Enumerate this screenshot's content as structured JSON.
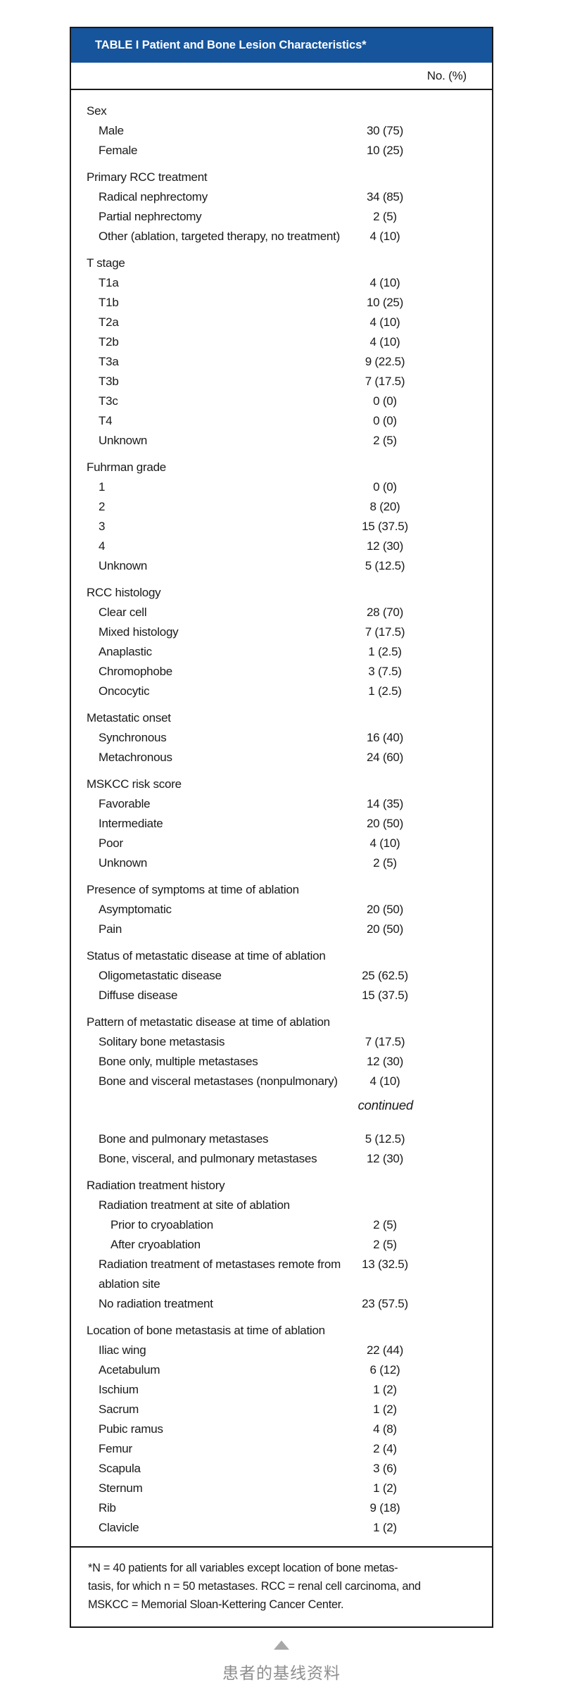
{
  "colors": {
    "header_blue": "#16549c",
    "border_black": "#1a1a1a",
    "caption_gray": "#8e8e8e",
    "triangle_gray": "#a8a8a8"
  },
  "table": {
    "title": "TABLE I Patient and Bone Lesion Characteristics*",
    "column_header": "No. (%)",
    "rows": [
      {
        "label": "Sex",
        "value": "",
        "indent": 0
      },
      {
        "label": "Male",
        "value": "30 (75)",
        "indent": 1
      },
      {
        "label": "Female",
        "value": "10 (25)",
        "indent": 1
      },
      {
        "label": "Primary RCC treatment",
        "value": "",
        "indent": 0
      },
      {
        "label": "Radical nephrectomy",
        "value": "34 (85)",
        "indent": 1
      },
      {
        "label": "Partial nephrectomy",
        "value": "2 (5)",
        "indent": 1
      },
      {
        "label": "Other (ablation, targeted therapy, no treatment)",
        "value": "4 (10)",
        "indent": 1
      },
      {
        "label": "T stage",
        "value": "",
        "indent": 0
      },
      {
        "label": "T1a",
        "value": "4 (10)",
        "indent": 1
      },
      {
        "label": "T1b",
        "value": "10 (25)",
        "indent": 1
      },
      {
        "label": "T2a",
        "value": "4 (10)",
        "indent": 1
      },
      {
        "label": "T2b",
        "value": "4 (10)",
        "indent": 1
      },
      {
        "label": "T3a",
        "value": "9 (22.5)",
        "indent": 1
      },
      {
        "label": "T3b",
        "value": "7 (17.5)",
        "indent": 1
      },
      {
        "label": "T3c",
        "value": "0 (0)",
        "indent": 1
      },
      {
        "label": "T4",
        "value": "0 (0)",
        "indent": 1
      },
      {
        "label": "Unknown",
        "value": "2 (5)",
        "indent": 1
      },
      {
        "label": "Fuhrman grade",
        "value": "",
        "indent": 0
      },
      {
        "label": "1",
        "value": "0 (0)",
        "indent": 1
      },
      {
        "label": "2",
        "value": "8 (20)",
        "indent": 1
      },
      {
        "label": "3",
        "value": "15 (37.5)",
        "indent": 1
      },
      {
        "label": "4",
        "value": "12 (30)",
        "indent": 1
      },
      {
        "label": "Unknown",
        "value": "5 (12.5)",
        "indent": 1
      },
      {
        "label": "RCC histology",
        "value": "",
        "indent": 0
      },
      {
        "label": "Clear cell",
        "value": "28 (70)",
        "indent": 1
      },
      {
        "label": "Mixed histology",
        "value": "7 (17.5)",
        "indent": 1
      },
      {
        "label": "Anaplastic",
        "value": "1 (2.5)",
        "indent": 1
      },
      {
        "label": "Chromophobe",
        "value": "3 (7.5)",
        "indent": 1
      },
      {
        "label": "Oncocytic",
        "value": "1 (2.5)",
        "indent": 1
      },
      {
        "label": "Metastatic onset",
        "value": "",
        "indent": 0
      },
      {
        "label": "Synchronous",
        "value": "16 (40)",
        "indent": 1
      },
      {
        "label": "Metachronous",
        "value": "24 (60)",
        "indent": 1
      },
      {
        "label": "MSKCC risk score",
        "value": "",
        "indent": 0
      },
      {
        "label": "Favorable",
        "value": "14 (35)",
        "indent": 1
      },
      {
        "label": "Intermediate",
        "value": "20 (50)",
        "indent": 1
      },
      {
        "label": "Poor",
        "value": "4 (10)",
        "indent": 1
      },
      {
        "label": "Unknown",
        "value": "2 (5)",
        "indent": 1
      },
      {
        "label": "Presence of symptoms at time of ablation",
        "value": "",
        "indent": 0
      },
      {
        "label": "Asymptomatic",
        "value": "20 (50)",
        "indent": 1
      },
      {
        "label": "Pain",
        "value": "20 (50)",
        "indent": 1
      },
      {
        "label": "Status of metastatic disease at time of ablation",
        "value": "",
        "indent": 0
      },
      {
        "label": "Oligometastatic disease",
        "value": "25 (62.5)",
        "indent": 1
      },
      {
        "label": "Diffuse disease",
        "value": "15 (37.5)",
        "indent": 1
      },
      {
        "label": "Pattern of metastatic disease at time of ablation",
        "value": "",
        "indent": 0
      },
      {
        "label": "Solitary bone metastasis",
        "value": "7 (17.5)",
        "indent": 1
      },
      {
        "label": "Bone only, multiple metastases",
        "value": "12 (30)",
        "indent": 1
      },
      {
        "label": "Bone and visceral metastases (nonpulmonary)",
        "value": "4 (10)",
        "indent": 1
      },
      {
        "type": "continued",
        "label": "continued"
      },
      {
        "label": "Bone and pulmonary metastases",
        "value": "5 (12.5)",
        "indent": 1
      },
      {
        "label": "Bone, visceral, and pulmonary metastases",
        "value": "12 (30)",
        "indent": 1
      },
      {
        "label": "Radiation treatment history",
        "value": "",
        "indent": 0
      },
      {
        "label": "Radiation treatment at site of ablation",
        "value": "",
        "indent": 1
      },
      {
        "label": "Prior to cryoablation",
        "value": "2 (5)",
        "indent": 2
      },
      {
        "label": "After cryoablation",
        "value": "2 (5)",
        "indent": 2
      },
      {
        "label": "Radiation treatment of metastases remote from ablation site",
        "value": "13 (32.5)",
        "indent": 1,
        "wrap": true
      },
      {
        "label": "No radiation treatment",
        "value": "23 (57.5)",
        "indent": 1
      },
      {
        "label": "Location of bone metastasis at time of ablation",
        "value": "",
        "indent": 0
      },
      {
        "label": "Iliac wing",
        "value": "22 (44)",
        "indent": 1
      },
      {
        "label": "Acetabulum",
        "value": "6 (12)",
        "indent": 1
      },
      {
        "label": "Ischium",
        "value": "1 (2)",
        "indent": 1
      },
      {
        "label": "Sacrum",
        "value": "1 (2)",
        "indent": 1
      },
      {
        "label": "Pubic ramus",
        "value": "4 (8)",
        "indent": 1
      },
      {
        "label": "Femur",
        "value": "2 (4)",
        "indent": 1
      },
      {
        "label": "Scapula",
        "value": "3 (6)",
        "indent": 1
      },
      {
        "label": "Sternum",
        "value": "1 (2)",
        "indent": 1
      },
      {
        "label": "Rib",
        "value": "9 (18)",
        "indent": 1
      },
      {
        "label": "Clavicle",
        "value": "1 (2)",
        "indent": 1
      }
    ]
  },
  "footnote": {
    "lines": [
      "*N = 40 patients for all variables except location of bone metas-",
      "tasis, for which n = 50 metastases. RCC = renal cell carcinoma, and",
      "MSKCC = Memorial Sloan-Kettering Cancer Center."
    ]
  },
  "caption": {
    "text": "患者的基线资料"
  }
}
